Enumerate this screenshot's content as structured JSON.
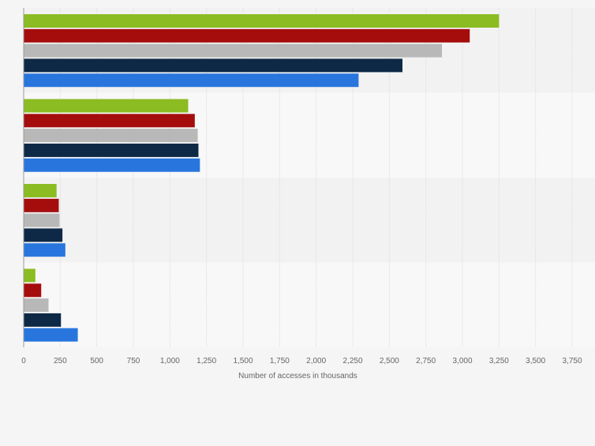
{
  "chart_data": {
    "type": "bar",
    "orientation": "horizontal",
    "categories": [
      "",
      "",
      "",
      ""
    ],
    "series": [
      {
        "color": "#8bbc21",
        "values": [
          3250,
          1125,
          225,
          80
        ]
      },
      {
        "color": "#a50d0d",
        "values": [
          3050,
          1170,
          240,
          120
        ]
      },
      {
        "color": "#b8b8b8",
        "values": [
          2860,
          1190,
          245,
          170
        ]
      },
      {
        "color": "#0d2946",
        "values": [
          2590,
          1195,
          265,
          255
        ]
      },
      {
        "color": "#2876dd",
        "values": [
          2290,
          1205,
          285,
          370
        ]
      }
    ],
    "xlabel": "Number of accesses in thousands",
    "xlim": [
      0,
      3750
    ],
    "xticks": [
      0,
      250,
      500,
      750,
      1000,
      1250,
      1500,
      1750,
      2000,
      2250,
      2500,
      2750,
      3000,
      3250,
      3500,
      3750
    ],
    "xtick_labels": [
      "0",
      "250",
      "500",
      "750",
      "1,000",
      "1,250",
      "1,500",
      "1,750",
      "2,000",
      "2,250",
      "2,500",
      "2,750",
      "3,000",
      "3,250",
      "3,500",
      "3,750"
    ],
    "grid": "vertical",
    "legend": "none"
  }
}
